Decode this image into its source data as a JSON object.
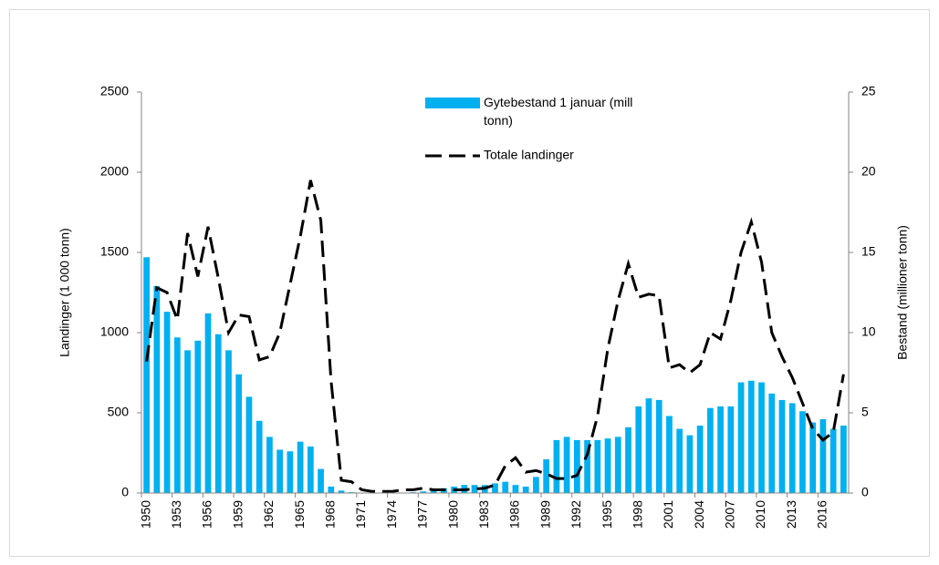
{
  "chart_data": {
    "type": "bar_line",
    "categories": [
      "1950",
      null,
      null,
      "1953",
      null,
      null,
      "1956",
      null,
      null,
      "1959",
      null,
      null,
      "1962",
      null,
      null,
      "1965",
      null,
      null,
      "1968",
      null,
      null,
      "1971",
      null,
      null,
      "1974",
      null,
      null,
      "1977",
      null,
      null,
      "1980",
      null,
      null,
      "1983",
      null,
      null,
      "1986",
      null,
      null,
      "1989",
      null,
      null,
      "1992",
      null,
      null,
      "1995",
      null,
      null,
      "1998",
      null,
      null,
      "2001",
      null,
      null,
      "2004",
      null,
      null,
      "2007",
      null,
      null,
      "2010",
      null,
      null,
      "2013",
      null,
      null,
      "2016",
      null,
      null
    ],
    "series": [
      {
        "name": "Gytebestand 1 januar (mill tonn)",
        "type": "bar",
        "axis": "y2",
        "color": "#00b0f0",
        "values": [
          14.7,
          12.9,
          11.3,
          9.7,
          8.9,
          9.5,
          11.2,
          9.9,
          8.9,
          7.4,
          6.0,
          4.5,
          3.5,
          2.7,
          2.6,
          3.2,
          2.9,
          1.5,
          0.4,
          0.15,
          0.05,
          0.02,
          0.02,
          0.02,
          0.02,
          0.02,
          0.05,
          0.1,
          0.2,
          0.3,
          0.4,
          0.5,
          0.5,
          0.5,
          0.6,
          0.7,
          0.5,
          0.4,
          1.0,
          2.1,
          3.3,
          3.5,
          3.3,
          3.3,
          3.3,
          3.4,
          3.5,
          4.1,
          5.4,
          5.9,
          5.8,
          4.8,
          4.0,
          3.6,
          4.2,
          5.3,
          5.4,
          5.4,
          6.9,
          7.0,
          6.9,
          6.2,
          5.8,
          5.6,
          5.1,
          4.4,
          4.6,
          4.0,
          4.2
        ]
      },
      {
        "name": "Totale landinger",
        "type": "line",
        "axis": "y",
        "color": "#000000",
        "style": "dashed",
        "values": [
          820,
          1280,
          1250,
          1080,
          1620,
          1350,
          1660,
          1340,
          1000,
          1110,
          1100,
          830,
          850,
          1000,
          1300,
          1600,
          1950,
          1700,
          700,
          80,
          70,
          20,
          10,
          10,
          10,
          20,
          20,
          30,
          20,
          20,
          20,
          20,
          25,
          30,
          50,
          170,
          220,
          130,
          140,
          120,
          90,
          90,
          110,
          240,
          480,
          900,
          1200,
          1430,
          1220,
          1240,
          1230,
          780,
          800,
          750,
          800,
          1000,
          960,
          1200,
          1500,
          1690,
          1440,
          1000,
          850,
          720,
          560,
          400,
          330,
          380,
          740
        ]
      }
    ],
    "ylabel": "Landinger (1 000 tonn)",
    "y2label": "Bestand (millioner tonn)",
    "ylim": [
      0,
      2500
    ],
    "yticks": [
      0,
      500,
      1000,
      1500,
      2000,
      2500
    ],
    "y2lim": [
      0,
      25
    ],
    "y2ticks": [
      0,
      5,
      10,
      15,
      20,
      25
    ],
    "legend": "top"
  }
}
